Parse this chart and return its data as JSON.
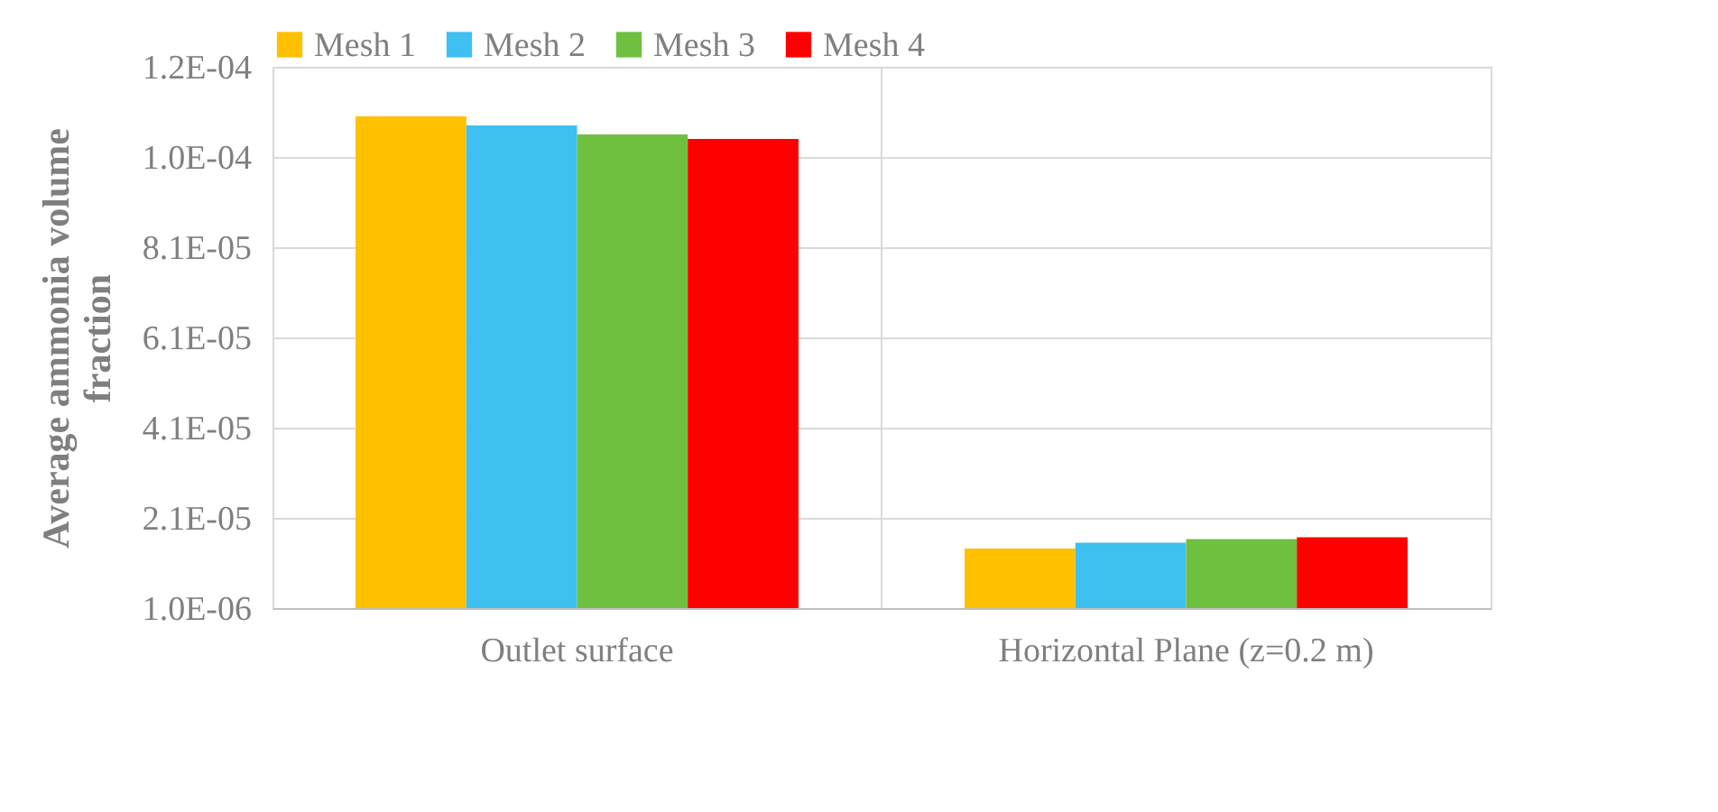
{
  "chart_data": {
    "type": "bar",
    "ylabel": "Average ammonia volume fraction",
    "categories": [
      "Outlet surface",
      "Horizontal Plane (z=0.2 m)"
    ],
    "series": [
      {
        "name": "Mesh 1",
        "color": "#ffc000",
        "values": [
          0.00011,
          1.42e-05
        ]
      },
      {
        "name": "Mesh 2",
        "color": "#3ec0f0",
        "values": [
          0.000108,
          1.55e-05
        ]
      },
      {
        "name": "Mesh 3",
        "color": "#70c040",
        "values": [
          0.000106,
          1.63e-05
        ]
      },
      {
        "name": "Mesh 4",
        "color": "#ff0000",
        "values": [
          0.000105,
          1.67e-05
        ]
      }
    ],
    "ylim": [
      1e-06,
      0.000121
    ],
    "yticks": [
      {
        "value": 1e-06,
        "label": "1.0E-06"
      },
      {
        "value": 2.1e-05,
        "label": "2.1E-05"
      },
      {
        "value": 4.1e-05,
        "label": "4.1E-05"
      },
      {
        "value": 6.1e-05,
        "label": "6.1E-05"
      },
      {
        "value": 8.1e-05,
        "label": "8.1E-05"
      },
      {
        "value": 0.000101,
        "label": "1.0E-04"
      },
      {
        "value": 0.000121,
        "label": "1.2E-04"
      }
    ],
    "grid": true,
    "legend": "top"
  }
}
